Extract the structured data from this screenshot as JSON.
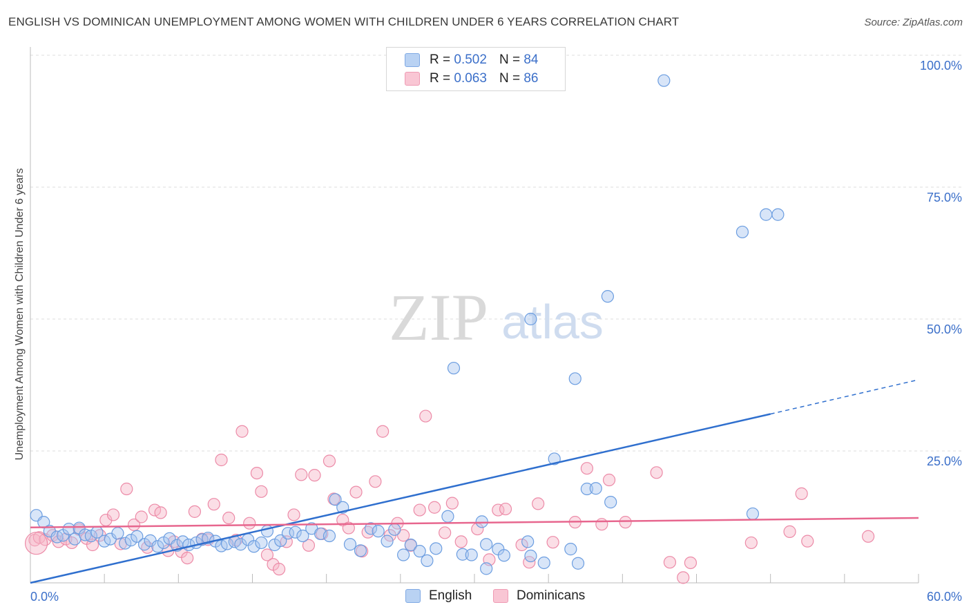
{
  "title": "ENGLISH VS DOMINICAN UNEMPLOYMENT AMONG WOMEN WITH CHILDREN UNDER 6 YEARS CORRELATION CHART",
  "source": "Source: ZipAtlas.com",
  "watermark": {
    "zip": "ZIP",
    "atlas": "atlas"
  },
  "colors": {
    "english_fill": "#a8c6ef",
    "english_stroke": "#6b9de0",
    "english_line": "#2f6fce",
    "dominican_fill": "#f7b6c8",
    "dominican_stroke": "#ec8aa7",
    "dominican_line": "#e7668e",
    "axis_label": "#3b6fc9",
    "grid": "#dcdcdc"
  },
  "legend": {
    "english": {
      "r_label": "R =",
      "r_value": "0.502",
      "n_label": "N =",
      "n_value": "84"
    },
    "dominican": {
      "r_label": "R =",
      "r_value": "0.063",
      "n_label": "N =",
      "n_value": "86"
    }
  },
  "bottom_legend": {
    "english": "English",
    "dominican": "Dominicans"
  },
  "chart_data": {
    "type": "scatter",
    "title": "ENGLISH VS DOMINICAN UNEMPLOYMENT AMONG WOMEN WITH CHILDREN UNDER 6 YEARS CORRELATION CHART",
    "ylabel": "Unemployment Among Women with Children Under 6 years",
    "xlabel": "",
    "xlim": [
      0,
      60
    ],
    "ylim": [
      0,
      100
    ],
    "x_tick_labels": {
      "min": "0.0%",
      "max": "60.0%"
    },
    "y_ticks": [
      {
        "value": 25,
        "label": "25.0%"
      },
      {
        "value": 50,
        "label": "50.0%"
      },
      {
        "value": 75,
        "label": "75.0%"
      },
      {
        "value": 100,
        "label": "100.0%"
      }
    ],
    "grid": true,
    "legend_position": "top-center",
    "series": [
      {
        "name": "English",
        "trend": {
          "x0": 0,
          "y0": 0,
          "x1": 50,
          "y1": 32,
          "dashed_to_x": 60,
          "dashed_to_y": 38.5
        },
        "points": [
          [
            0.4,
            12.8
          ],
          [
            0.9,
            11.5
          ],
          [
            1.3,
            9.8
          ],
          [
            1.8,
            8.7
          ],
          [
            2.2,
            9.0
          ],
          [
            2.6,
            10.2
          ],
          [
            3.0,
            8.3
          ],
          [
            3.3,
            10.4
          ],
          [
            3.7,
            9.1
          ],
          [
            4.1,
            8.9
          ],
          [
            4.5,
            9.6
          ],
          [
            5.0,
            7.9
          ],
          [
            5.4,
            8.3
          ],
          [
            5.9,
            9.4
          ],
          [
            6.4,
            7.5
          ],
          [
            6.8,
            8.1
          ],
          [
            7.2,
            8.8
          ],
          [
            7.7,
            7.3
          ],
          [
            8.1,
            8.0
          ],
          [
            8.6,
            6.9
          ],
          [
            9.0,
            7.6
          ],
          [
            9.4,
            8.4
          ],
          [
            9.9,
            7.1
          ],
          [
            10.3,
            7.8
          ],
          [
            10.7,
            7.2
          ],
          [
            11.2,
            7.6
          ],
          [
            11.6,
            8.2
          ],
          [
            12.0,
            8.5
          ],
          [
            12.5,
            7.9
          ],
          [
            12.9,
            7.0
          ],
          [
            13.3,
            7.4
          ],
          [
            13.8,
            7.8
          ],
          [
            14.2,
            7.3
          ],
          [
            14.7,
            8.2
          ],
          [
            15.1,
            6.9
          ],
          [
            15.6,
            7.6
          ],
          [
            16.0,
            9.8
          ],
          [
            16.5,
            7.2
          ],
          [
            16.9,
            8.0
          ],
          [
            17.4,
            9.4
          ],
          [
            17.9,
            9.6
          ],
          [
            18.4,
            8.9
          ],
          [
            19.0,
            10.3
          ],
          [
            19.6,
            9.3
          ],
          [
            20.2,
            8.9
          ],
          [
            20.6,
            15.8
          ],
          [
            21.1,
            14.3
          ],
          [
            21.6,
            7.3
          ],
          [
            22.3,
            6.1
          ],
          [
            23.0,
            10.3
          ],
          [
            23.5,
            9.8
          ],
          [
            24.1,
            7.9
          ],
          [
            24.6,
            10.1
          ],
          [
            25.2,
            5.3
          ],
          [
            25.7,
            7.2
          ],
          [
            26.3,
            6.0
          ],
          [
            26.8,
            4.2
          ],
          [
            27.4,
            6.5
          ],
          [
            28.2,
            12.6
          ],
          [
            28.6,
            40.7
          ],
          [
            29.2,
            5.4
          ],
          [
            29.8,
            5.3
          ],
          [
            30.5,
            11.6
          ],
          [
            30.8,
            7.3
          ],
          [
            31.6,
            6.4
          ],
          [
            32.0,
            5.2
          ],
          [
            33.6,
            7.8
          ],
          [
            33.8,
            5.1
          ],
          [
            34.7,
            3.8
          ],
          [
            35.4,
            23.5
          ],
          [
            33.8,
            50.0
          ],
          [
            36.5,
            6.4
          ],
          [
            37.6,
            17.8
          ],
          [
            37.0,
            3.7
          ],
          [
            36.8,
            38.7
          ],
          [
            39.0,
            54.3
          ],
          [
            39.2,
            15.3
          ],
          [
            38.2,
            17.9
          ],
          [
            42.8,
            95.2
          ],
          [
            48.1,
            66.5
          ],
          [
            48.8,
            13.1
          ],
          [
            49.7,
            69.8
          ],
          [
            50.5,
            69.8
          ],
          [
            30.8,
            2.7
          ]
        ]
      },
      {
        "name": "Dominicans",
        "trend": {
          "x0": 0,
          "y0": 10.5,
          "x1": 60,
          "y1": 12.3
        },
        "points": [
          [
            0.3,
            8.1
          ],
          [
            0.6,
            8.6
          ],
          [
            1.0,
            8.2
          ],
          [
            1.5,
            9.0
          ],
          [
            1.9,
            7.8
          ],
          [
            2.4,
            8.3
          ],
          [
            2.8,
            7.6
          ],
          [
            3.3,
            10.1
          ],
          [
            3.8,
            8.4
          ],
          [
            4.2,
            7.2
          ],
          [
            4.7,
            9.0
          ],
          [
            5.1,
            11.9
          ],
          [
            5.6,
            12.9
          ],
          [
            6.1,
            7.4
          ],
          [
            6.5,
            17.8
          ],
          [
            7.0,
            11.0
          ],
          [
            7.5,
            12.5
          ],
          [
            7.9,
            6.7
          ],
          [
            8.4,
            13.8
          ],
          [
            8.8,
            13.3
          ],
          [
            9.3,
            6.1
          ],
          [
            9.7,
            7.8
          ],
          [
            10.2,
            5.9
          ],
          [
            10.6,
            4.7
          ],
          [
            11.1,
            13.5
          ],
          [
            11.6,
            8.3
          ],
          [
            12.0,
            8.2
          ],
          [
            12.4,
            14.9
          ],
          [
            12.9,
            23.3
          ],
          [
            13.4,
            12.3
          ],
          [
            13.9,
            8.1
          ],
          [
            14.3,
            28.7
          ],
          [
            14.8,
            11.3
          ],
          [
            15.3,
            20.8
          ],
          [
            15.6,
            17.3
          ],
          [
            16.0,
            5.3
          ],
          [
            16.4,
            3.5
          ],
          [
            16.8,
            2.6
          ],
          [
            17.3,
            7.8
          ],
          [
            17.8,
            12.9
          ],
          [
            18.3,
            20.5
          ],
          [
            18.8,
            7.1
          ],
          [
            19.2,
            20.4
          ],
          [
            19.7,
            9.3
          ],
          [
            20.2,
            23.1
          ],
          [
            20.5,
            15.9
          ],
          [
            21.1,
            11.9
          ],
          [
            21.5,
            10.4
          ],
          [
            22.0,
            17.2
          ],
          [
            22.4,
            6.0
          ],
          [
            22.8,
            9.6
          ],
          [
            23.3,
            19.2
          ],
          [
            23.8,
            28.7
          ],
          [
            24.3,
            9.0
          ],
          [
            24.8,
            11.3
          ],
          [
            25.2,
            9.0
          ],
          [
            25.7,
            7.1
          ],
          [
            26.3,
            13.8
          ],
          [
            26.7,
            31.6
          ],
          [
            27.3,
            14.3
          ],
          [
            28.0,
            9.5
          ],
          [
            28.5,
            15.1
          ],
          [
            29.1,
            7.8
          ],
          [
            30.2,
            10.2
          ],
          [
            31.0,
            4.4
          ],
          [
            31.6,
            13.8
          ],
          [
            32.1,
            14.0
          ],
          [
            33.2,
            7.2
          ],
          [
            33.7,
            3.9
          ],
          [
            34.3,
            15.0
          ],
          [
            35.3,
            7.7
          ],
          [
            36.8,
            11.5
          ],
          [
            37.6,
            21.7
          ],
          [
            38.6,
            11.1
          ],
          [
            39.1,
            19.5
          ],
          [
            40.2,
            11.5
          ],
          [
            42.3,
            20.9
          ],
          [
            43.2,
            3.9
          ],
          [
            44.1,
            1.0
          ],
          [
            44.6,
            3.8
          ],
          [
            48.7,
            7.6
          ],
          [
            51.3,
            9.7
          ],
          [
            52.1,
            16.9
          ],
          [
            52.5,
            7.9
          ],
          [
            56.6,
            8.8
          ],
          [
            0.4,
            7.5
          ]
        ]
      }
    ]
  }
}
